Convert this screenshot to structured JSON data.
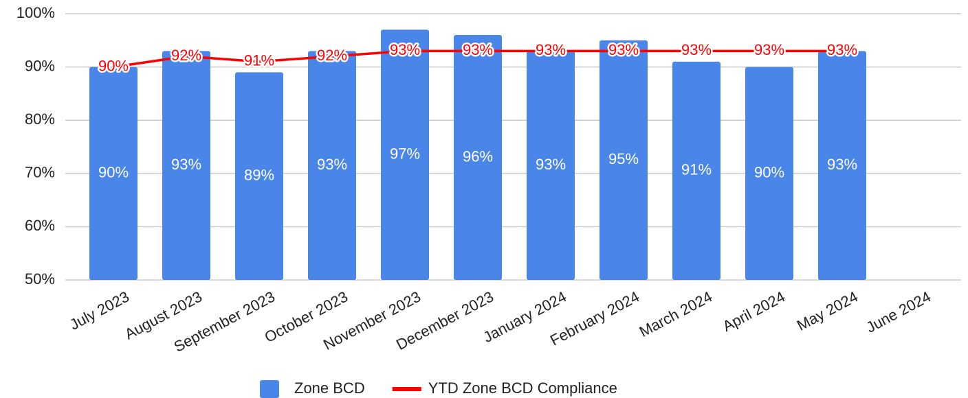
{
  "chart_data": {
    "type": "combo",
    "categories": [
      "July 2023",
      "August 2023",
      "September 2023",
      "October 2023",
      "November 2023",
      "December 2023",
      "January 2024",
      "February 2024",
      "March 2024",
      "April 2024",
      "May 2024",
      "June 2024"
    ],
    "series": [
      {
        "name": "Zone BCD",
        "type": "bar",
        "color": "#4a86e8",
        "values": [
          90,
          93,
          89,
          93,
          97,
          96,
          93,
          95,
          91,
          90,
          93,
          null
        ],
        "value_labels": [
          "90%",
          "93%",
          "89%",
          "93%",
          "97%",
          "96%",
          "93%",
          "95%",
          "91%",
          "90%",
          "93%",
          null
        ]
      },
      {
        "name": "YTD Zone BCD Compliance",
        "type": "line",
        "color": "#ff0000",
        "values": [
          90,
          92,
          91,
          92,
          93,
          93,
          93,
          93,
          93,
          93,
          93,
          null
        ],
        "value_labels": [
          "90%",
          "92%",
          "91%",
          "92%",
          "93%",
          "93%",
          "93%",
          "93%",
          "93%",
          "93%",
          "93%",
          null
        ]
      }
    ],
    "ylim": [
      50,
      100
    ],
    "yticks": [
      {
        "value": 50,
        "label": "50%"
      },
      {
        "value": 60,
        "label": "60%"
      },
      {
        "value": 70,
        "label": "70%"
      },
      {
        "value": 80,
        "label": "80%"
      },
      {
        "value": 90,
        "label": "90%"
      },
      {
        "value": 100,
        "label": "100%"
      }
    ],
    "grid": true,
    "legend": "bottom"
  }
}
